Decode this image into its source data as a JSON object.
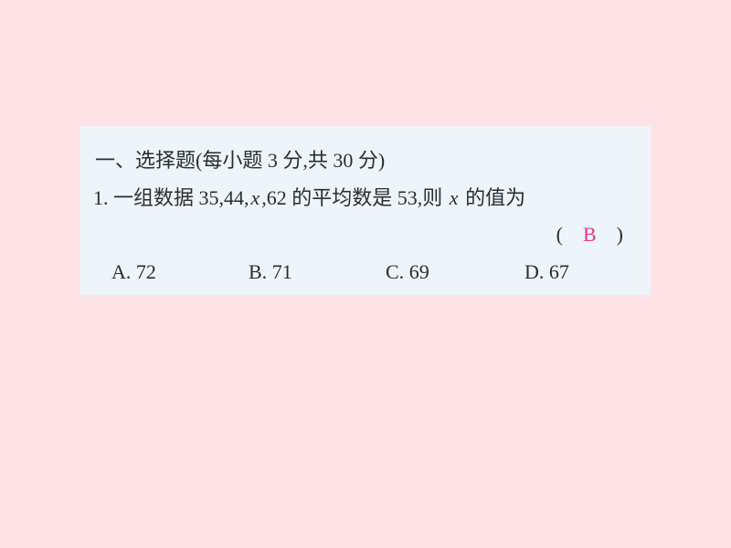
{
  "card": {
    "background_color": "#edf5fa",
    "page_background": "#fde3e6",
    "text_color": "#2b2c2e",
    "highlight_color": "#e6348a",
    "font_size_pt": 16
  },
  "heading": {
    "label": "一、选择题",
    "note": "(每小题 3 分,共 30 分)"
  },
  "question": {
    "number": "1.",
    "pre": " 一组数据 35,44,",
    "var": "x",
    "mid": ",62 的平均数是 53,则 ",
    "var2": "x",
    "post": " 的值为"
  },
  "answer": {
    "open": "(　",
    "letter": "B",
    "close": "　)"
  },
  "options": {
    "a": {
      "label": "A.",
      "value": " 72"
    },
    "b": {
      "label": "B.",
      "value": " 71"
    },
    "c": {
      "label": "C.",
      "value": " 69"
    },
    "d": {
      "label": "D.",
      "value": " 67"
    }
  }
}
